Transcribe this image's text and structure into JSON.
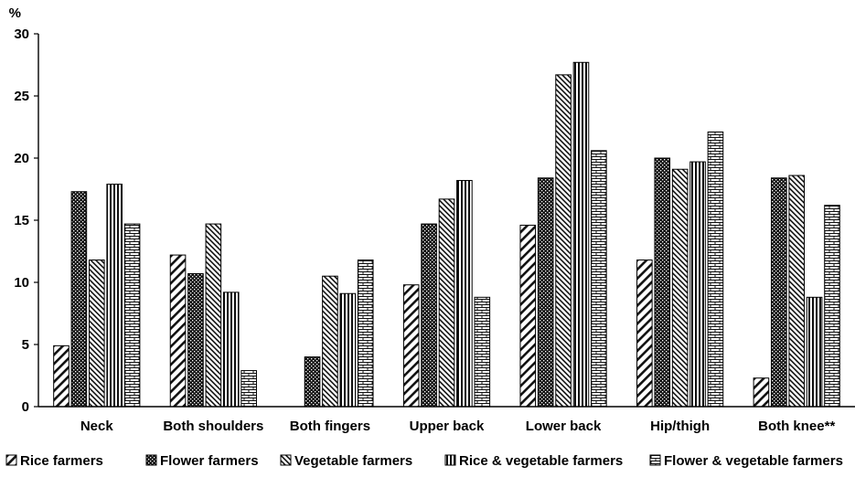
{
  "chart_data": {
    "type": "bar",
    "ylabel": "%",
    "ylim": [
      0,
      30
    ],
    "yticks": [
      0,
      5,
      10,
      15,
      20,
      25,
      30
    ],
    "grid": false,
    "legend_position": "bottom",
    "categories": [
      "Neck",
      "Both shoulders",
      "Both fingers",
      "Upper back",
      "Lower back",
      "Hip/thigh",
      "Both knee**"
    ],
    "series": [
      {
        "name": "Rice farmers",
        "pattern": "diag-sparse",
        "values": [
          4.9,
          12.2,
          0,
          9.8,
          14.6,
          11.8,
          2.3
        ]
      },
      {
        "name": "Flower farmers",
        "pattern": "dots-dense",
        "values": [
          17.3,
          10.7,
          4.0,
          14.7,
          18.4,
          20.0,
          18.4
        ]
      },
      {
        "name": "Vegetable farmers",
        "pattern": "diag-dense",
        "values": [
          11.8,
          14.7,
          10.5,
          16.7,
          26.7,
          19.1,
          18.6
        ]
      },
      {
        "name": "Rice & vegetable farmers",
        "pattern": "vertical",
        "values": [
          17.9,
          9.2,
          9.1,
          18.2,
          27.7,
          19.7,
          8.8
        ]
      },
      {
        "name": "Flower & vegetable farmers",
        "pattern": "brick",
        "values": [
          14.7,
          2.9,
          11.8,
          8.8,
          20.6,
          22.1,
          16.2
        ]
      }
    ]
  }
}
